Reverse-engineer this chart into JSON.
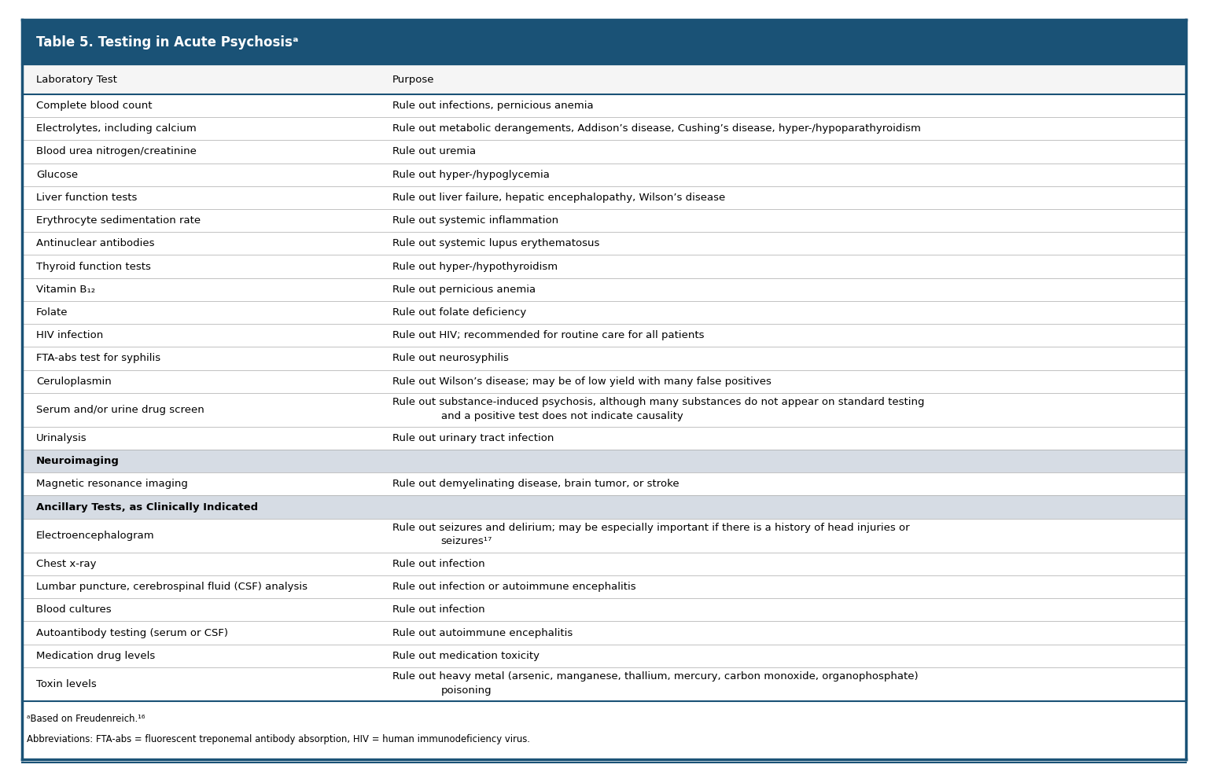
{
  "title": "Table 5. Testing in Acute Psychosisᵃ",
  "title_bg": "#1a5276",
  "title_color": "#ffffff",
  "header_col1": "Laboratory Test",
  "header_col2": "Purpose",
  "col_split": 0.295,
  "rows": [
    {
      "col1": "Complete blood count",
      "col2": "Rule out infections, pernicious anemia",
      "bold": false,
      "section_header": false,
      "indent": false
    },
    {
      "col1": "Electrolytes, including calcium",
      "col2": "Rule out metabolic derangements, Addison’s disease, Cushing’s disease, hyper-/hypoparathyroidism",
      "bold": false,
      "section_header": false,
      "indent": false
    },
    {
      "col1": "Blood urea nitrogen/creatinine",
      "col2": "Rule out uremia",
      "bold": false,
      "section_header": false,
      "indent": false
    },
    {
      "col1": "Glucose",
      "col2": "Rule out hyper-/hypoglycemia",
      "bold": false,
      "section_header": false,
      "indent": false
    },
    {
      "col1": "Liver function tests",
      "col2": "Rule out liver failure, hepatic encephalopathy, Wilson’s disease",
      "bold": false,
      "section_header": false,
      "indent": false
    },
    {
      "col1": "Erythrocyte sedimentation rate",
      "col2": "Rule out systemic inflammation",
      "bold": false,
      "section_header": false,
      "indent": false
    },
    {
      "col1": "Antinuclear antibodies",
      "col2": "Rule out systemic lupus erythematosus",
      "bold": false,
      "section_header": false,
      "indent": false
    },
    {
      "col1": "Thyroid function tests",
      "col2": "Rule out hyper-/hypothyroidism",
      "bold": false,
      "section_header": false,
      "indent": false
    },
    {
      "col1": "Vitamin B₁₂",
      "col2": "Rule out pernicious anemia",
      "bold": false,
      "section_header": false,
      "indent": false
    },
    {
      "col1": "Folate",
      "col2": "Rule out folate deficiency",
      "bold": false,
      "section_header": false,
      "indent": false
    },
    {
      "col1": "HIV infection",
      "col2": "Rule out HIV; recommended for routine care for all patients",
      "bold": false,
      "section_header": false,
      "indent": false
    },
    {
      "col1": "FTA-abs test for syphilis",
      "col2": "Rule out neurosyphilis",
      "bold": false,
      "section_header": false,
      "indent": false
    },
    {
      "col1": "Ceruloplasmin",
      "col2": "Rule out Wilson’s disease; may be of low yield with many false positives",
      "bold": false,
      "section_header": false,
      "indent": false
    },
    {
      "col1": "Serum and/or urine drug screen",
      "col2": "Rule out substance-induced psychosis, although many substances do not appear on standard testing\n        and a positive test does not indicate causality",
      "bold": false,
      "section_header": false,
      "indent": false
    },
    {
      "col1": "Urinalysis",
      "col2": "Rule out urinary tract infection",
      "bold": false,
      "section_header": false,
      "indent": false
    },
    {
      "col1": "Neuroimaging",
      "col2": "",
      "bold": true,
      "section_header": true,
      "indent": false
    },
    {
      "col1": "Magnetic resonance imaging",
      "col2": "Rule out demyelinating disease, brain tumor, or stroke",
      "bold": false,
      "section_header": false,
      "indent": false
    },
    {
      "col1": "Ancillary Tests, as Clinically Indicated",
      "col2": "",
      "bold": true,
      "section_header": true,
      "indent": false
    },
    {
      "col1": "Electroencephalogram",
      "col2": "Rule out seizures and delirium; may be especially important if there is a history of head injuries or\n        seizures¹⁷",
      "bold": false,
      "section_header": false,
      "indent": false
    },
    {
      "col1": "Chest x-ray",
      "col2": "Rule out infection",
      "bold": false,
      "section_header": false,
      "indent": false
    },
    {
      "col1": "Lumbar puncture, cerebrospinal fluid (CSF) analysis",
      "col2": "Rule out infection or autoimmune encephalitis",
      "bold": false,
      "section_header": false,
      "indent": false
    },
    {
      "col1": "Blood cultures",
      "col2": "Rule out infection",
      "bold": false,
      "section_header": false,
      "indent": false
    },
    {
      "col1": "Autoantibody testing (serum or CSF)",
      "col2": "Rule out autoimmune encephalitis",
      "bold": false,
      "section_header": false,
      "indent": false
    },
    {
      "col1": "Medication drug levels",
      "col2": "Rule out medication toxicity",
      "bold": false,
      "section_header": false,
      "indent": false
    },
    {
      "col1": "Toxin levels",
      "col2": "Rule out heavy metal (arsenic, manganese, thallium, mercury, carbon monoxide, organophosphate)\n        poisoning",
      "bold": false,
      "section_header": false,
      "indent": false
    }
  ],
  "footnote1": "ᵃBased on Freudenreich.¹⁶",
  "footnote2": "Abbreviations: FTA-abs = fluorescent treponemal antibody absorption, HIV = human immunodeficiency virus.",
  "section_header_bg": "#d6dce4",
  "bg_color": "#ffffff",
  "border_color": "#1a5276",
  "line_color": "#aaaaaa",
  "text_color": "#000000",
  "font_size": 9.5,
  "header_font_size": 9.5,
  "title_font_size": 12
}
